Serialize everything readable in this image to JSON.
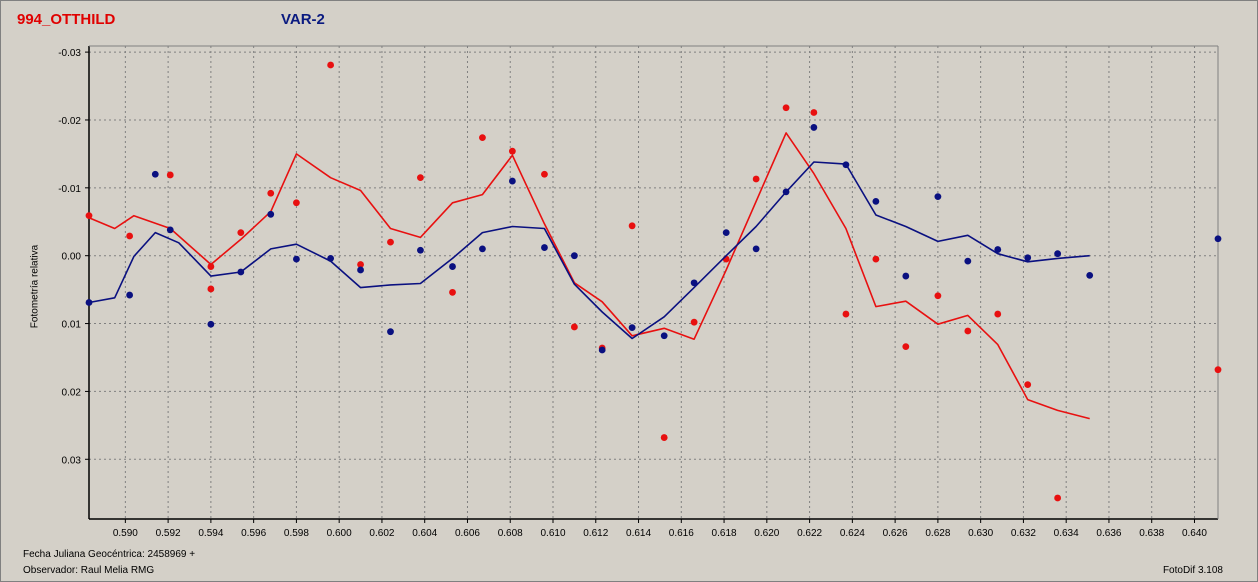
{
  "header": {
    "star_name": "994_OTTHILD",
    "series_name": "VAR-2"
  },
  "footer": {
    "jd_label": "Fecha Juliana Geocéntrica: 2458969 +",
    "observer_label": "Observador: Raul Melia RMG",
    "software_label": "FotoDif 3.108"
  },
  "colors": {
    "red": "#e81010",
    "blue": "#0a1080",
    "grid": "#808080",
    "plot_bg": "#d4d0c8"
  },
  "chart_data": {
    "type": "scatter",
    "title": "",
    "xlabel": "",
    "ylabel": "Fotometría relativa",
    "xlim": [
      0.5883,
      0.6411
    ],
    "ylim": [
      -0.0309,
      0.0388
    ],
    "y_inverted": true,
    "grid": true,
    "x_ticks": [
      "0.590",
      "0.592",
      "0.594",
      "0.596",
      "0.598",
      "0.600",
      "0.602",
      "0.604",
      "0.606",
      "0.608",
      "0.610",
      "0.612",
      "0.614",
      "0.616",
      "0.618",
      "0.620",
      "0.622",
      "0.624",
      "0.626",
      "0.628",
      "0.630",
      "0.632",
      "0.634",
      "0.636",
      "0.638",
      "0.640"
    ],
    "x_tick_values": [
      0.59,
      0.592,
      0.594,
      0.596,
      0.598,
      0.6,
      0.602,
      0.604,
      0.606,
      0.608,
      0.61,
      0.612,
      0.614,
      0.616,
      0.618,
      0.62,
      0.622,
      0.624,
      0.626,
      0.628,
      0.63,
      0.632,
      0.634,
      0.636,
      0.638,
      0.64
    ],
    "y_ticks": [
      "-0.03",
      "-0.02",
      "-0.01",
      "0.00",
      "0.01",
      "0.02",
      "0.03"
    ],
    "y_tick_values": [
      -0.03,
      -0.02,
      -0.01,
      0.0,
      0.01,
      0.02,
      0.03
    ],
    "series": [
      {
        "color": "#e81010",
        "points": [
          [
            0.5883,
            -0.0059
          ],
          [
            0.5902,
            -0.0029
          ],
          [
            0.5921,
            -0.0119
          ],
          [
            0.594,
            0.0016
          ],
          [
            0.594,
            0.0049
          ],
          [
            0.5954,
            -0.0034
          ],
          [
            0.5968,
            -0.0092
          ],
          [
            0.598,
            -0.0078
          ],
          [
            0.5996,
            -0.0281
          ],
          [
            0.601,
            0.0013
          ],
          [
            0.6024,
            -0.002
          ],
          [
            0.6038,
            -0.0115
          ],
          [
            0.6053,
            0.0054
          ],
          [
            0.6067,
            -0.0174
          ],
          [
            0.6081,
            -0.0154
          ],
          [
            0.6096,
            -0.012
          ],
          [
            0.611,
            0.0105
          ],
          [
            0.6123,
            0.0136
          ],
          [
            0.6137,
            -0.0044
          ],
          [
            0.6152,
            0.0268
          ],
          [
            0.6166,
            0.0098
          ],
          [
            0.6181,
            0.0005
          ],
          [
            0.6195,
            -0.0113
          ],
          [
            0.6209,
            -0.0218
          ],
          [
            0.6222,
            -0.0211
          ],
          [
            0.6237,
            0.0086
          ],
          [
            0.6251,
            0.0005
          ],
          [
            0.6265,
            0.0134
          ],
          [
            0.628,
            0.0059
          ],
          [
            0.6294,
            0.0111
          ],
          [
            0.6308,
            0.0086
          ],
          [
            0.6322,
            0.019
          ],
          [
            0.6336,
            0.0357
          ],
          [
            0.6411,
            0.0168
          ]
        ],
        "line": [
          [
            0.5883,
            -0.0056
          ],
          [
            0.5895,
            -0.004
          ],
          [
            0.5904,
            -0.0059
          ],
          [
            0.5921,
            -0.004
          ],
          [
            0.594,
            0.0013
          ],
          [
            0.5954,
            -0.0024
          ],
          [
            0.5968,
            -0.0065
          ],
          [
            0.598,
            -0.015
          ],
          [
            0.5996,
            -0.0115
          ],
          [
            0.601,
            -0.0096
          ],
          [
            0.6024,
            -0.004
          ],
          [
            0.6038,
            -0.0027
          ],
          [
            0.6053,
            -0.0078
          ],
          [
            0.6067,
            -0.009
          ],
          [
            0.6081,
            -0.0148
          ],
          [
            0.6096,
            -0.0047
          ],
          [
            0.611,
            0.004
          ],
          [
            0.6123,
            0.0068
          ],
          [
            0.6137,
            0.0118
          ],
          [
            0.6152,
            0.0107
          ],
          [
            0.6166,
            0.0123
          ],
          [
            0.6181,
            0.0021
          ],
          [
            0.6195,
            -0.008
          ],
          [
            0.6209,
            -0.0181
          ],
          [
            0.6222,
            -0.0121
          ],
          [
            0.6237,
            -0.004
          ],
          [
            0.6251,
            0.0075
          ],
          [
            0.6265,
            0.0067
          ],
          [
            0.628,
            0.0101
          ],
          [
            0.6294,
            0.0088
          ],
          [
            0.6308,
            0.0131
          ],
          [
            0.6322,
            0.0212
          ],
          [
            0.6336,
            0.0228
          ],
          [
            0.6351,
            0.024
          ]
        ]
      },
      {
        "color": "#0a1080",
        "points": [
          [
            0.5883,
            0.0069
          ],
          [
            0.5902,
            0.0058
          ],
          [
            0.5914,
            -0.012
          ],
          [
            0.5921,
            -0.0038
          ],
          [
            0.594,
            0.0101
          ],
          [
            0.5954,
            0.0024
          ],
          [
            0.5968,
            -0.0061
          ],
          [
            0.598,
            0.0005
          ],
          [
            0.5996,
            0.0004
          ],
          [
            0.601,
            0.0021
          ],
          [
            0.6024,
            0.0112
          ],
          [
            0.6038,
            -0.0008
          ],
          [
            0.6053,
            0.0016
          ],
          [
            0.6067,
            -0.001
          ],
          [
            0.6081,
            -0.011
          ],
          [
            0.6096,
            -0.0012
          ],
          [
            0.611,
            0.0
          ],
          [
            0.6123,
            0.0139
          ],
          [
            0.6137,
            0.0106
          ],
          [
            0.6152,
            0.0118
          ],
          [
            0.6166,
            0.004
          ],
          [
            0.6181,
            -0.0034
          ],
          [
            0.6195,
            -0.001
          ],
          [
            0.6209,
            -0.0094
          ],
          [
            0.6222,
            -0.0189
          ],
          [
            0.6237,
            -0.0134
          ],
          [
            0.6251,
            -0.008
          ],
          [
            0.6265,
            0.003
          ],
          [
            0.628,
            -0.0087
          ],
          [
            0.6294,
            0.0008
          ],
          [
            0.6308,
            -0.0009
          ],
          [
            0.6322,
            0.0003
          ],
          [
            0.6336,
            -0.0003
          ],
          [
            0.6351,
            0.0029
          ],
          [
            0.6411,
            -0.0025
          ]
        ],
        "line": [
          [
            0.5883,
            0.0069
          ],
          [
            0.5895,
            0.0062
          ],
          [
            0.5904,
            0.0001
          ],
          [
            0.5914,
            -0.0034
          ],
          [
            0.5925,
            -0.0019
          ],
          [
            0.594,
            0.003
          ],
          [
            0.5954,
            0.0024
          ],
          [
            0.5968,
            -0.001
          ],
          [
            0.598,
            -0.0017
          ],
          [
            0.5996,
            0.0008
          ],
          [
            0.601,
            0.0047
          ],
          [
            0.6024,
            0.0043
          ],
          [
            0.6038,
            0.0041
          ],
          [
            0.6053,
            0.0004
          ],
          [
            0.6067,
            -0.0034
          ],
          [
            0.6081,
            -0.0043
          ],
          [
            0.6096,
            -0.004
          ],
          [
            0.611,
            0.0042
          ],
          [
            0.6123,
            0.0083
          ],
          [
            0.6137,
            0.0122
          ],
          [
            0.6152,
            0.009
          ],
          [
            0.6166,
            0.0047
          ],
          [
            0.6181,
            0.0
          ],
          [
            0.6195,
            -0.0043
          ],
          [
            0.6209,
            -0.0094
          ],
          [
            0.6222,
            -0.0138
          ],
          [
            0.6237,
            -0.0135
          ],
          [
            0.6251,
            -0.006
          ],
          [
            0.6265,
            -0.0043
          ],
          [
            0.628,
            -0.0021
          ],
          [
            0.6294,
            -0.003
          ],
          [
            0.6308,
            -0.0003
          ],
          [
            0.6322,
            0.0009
          ],
          [
            0.6336,
            0.0004
          ],
          [
            0.6351,
            0.0
          ]
        ]
      }
    ]
  }
}
